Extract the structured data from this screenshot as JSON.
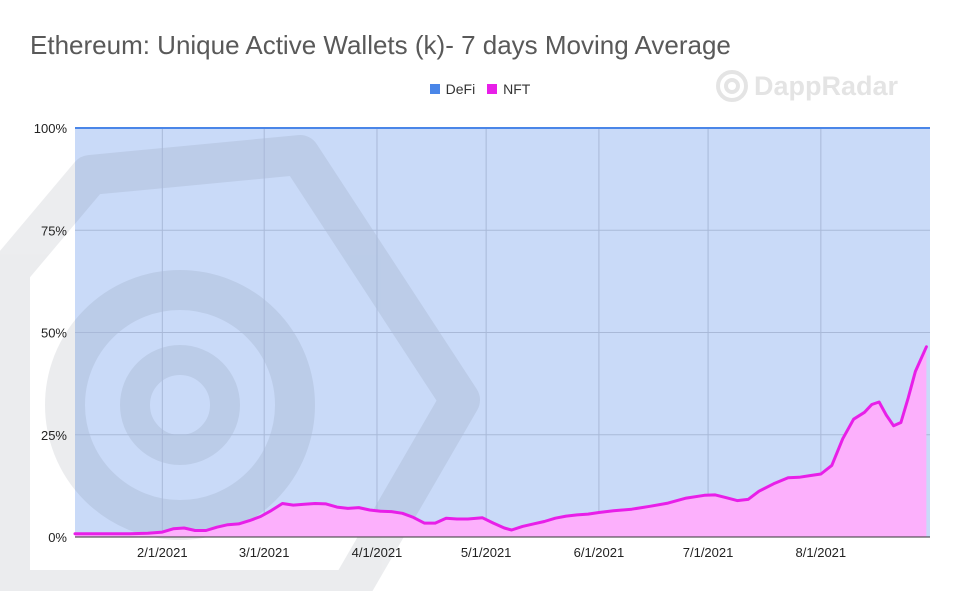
{
  "title": "Ethereum: Unique Active Wallets (k)- 7 days Moving Average",
  "brand": {
    "name": "DappRadar",
    "icon": "dappradar-logo-icon"
  },
  "colors": {
    "defi": "#4a86e8",
    "defi_fill": "#c9daf8",
    "nft": "#e81fe8",
    "nft_fill": "#fcb0fc",
    "grid": "#a9b9d8"
  },
  "chart_data": {
    "type": "area",
    "stacked": "100%",
    "legend": [
      "DeFi",
      "NFT"
    ],
    "legend_position": "top",
    "y_ticks": [
      "100%",
      "75%",
      "50%",
      "25%",
      "0%"
    ],
    "x_ticks": [
      "2/1/2021",
      "3/1/2021",
      "4/1/2021",
      "5/1/2021",
      "6/1/2021",
      "7/1/2021",
      "8/1/2021"
    ],
    "ylim": [
      0,
      100
    ],
    "xlim": [
      "2021-01-08",
      "2021-08-31"
    ],
    "grid": true,
    "series": [
      {
        "name": "NFT",
        "x": [
          "2021-01-08",
          "2021-01-13",
          "2021-01-18",
          "2021-01-23",
          "2021-01-28",
          "2021-02-01",
          "2021-02-04",
          "2021-02-07",
          "2021-02-10",
          "2021-02-13",
          "2021-02-16",
          "2021-02-19",
          "2021-02-22",
          "2021-02-25",
          "2021-02-28",
          "2021-03-03",
          "2021-03-06",
          "2021-03-09",
          "2021-03-12",
          "2021-03-15",
          "2021-03-18",
          "2021-03-21",
          "2021-03-24",
          "2021-03-27",
          "2021-03-30",
          "2021-04-02",
          "2021-04-05",
          "2021-04-08",
          "2021-04-11",
          "2021-04-14",
          "2021-04-17",
          "2021-04-20",
          "2021-04-23",
          "2021-04-26",
          "2021-04-30",
          "2021-05-03",
          "2021-05-06",
          "2021-05-08",
          "2021-05-11",
          "2021-05-14",
          "2021-05-17",
          "2021-05-20",
          "2021-05-23",
          "2021-05-26",
          "2021-05-29",
          "2021-06-01",
          "2021-06-05",
          "2021-06-10",
          "2021-06-15",
          "2021-06-20",
          "2021-06-25",
          "2021-06-30",
          "2021-07-03",
          "2021-07-06",
          "2021-07-09",
          "2021-07-12",
          "2021-07-15",
          "2021-07-19",
          "2021-07-23",
          "2021-07-26",
          "2021-07-29",
          "2021-08-01",
          "2021-08-04",
          "2021-08-07",
          "2021-08-10",
          "2021-08-13",
          "2021-08-15",
          "2021-08-17",
          "2021-08-19",
          "2021-08-21",
          "2021-08-23",
          "2021-08-25",
          "2021-08-27",
          "2021-08-30"
        ],
        "values": [
          0.8,
          0.8,
          0.8,
          0.8,
          0.9,
          1.2,
          2.0,
          2.2,
          1.6,
          1.6,
          2.4,
          3.0,
          3.2,
          4.0,
          5.0,
          6.5,
          8.2,
          7.8,
          8.0,
          8.2,
          8.1,
          7.3,
          7.0,
          7.2,
          6.6,
          6.3,
          6.2,
          5.8,
          4.8,
          3.4,
          3.4,
          4.6,
          4.4,
          4.4,
          4.7,
          3.4,
          2.2,
          1.7,
          2.6,
          3.2,
          3.8,
          4.6,
          5.1,
          5.4,
          5.6,
          6.0,
          6.4,
          6.8,
          7.5,
          8.3,
          9.5,
          10.2,
          10.3,
          9.6,
          8.9,
          9.2,
          11.2,
          13.0,
          14.5,
          14.6,
          15.0,
          15.4,
          17.5,
          24.0,
          28.8,
          30.5,
          32.4,
          33.0,
          29.8,
          27.2,
          28.0,
          34.0,
          40.5,
          46.5
        ]
      },
      {
        "name": "DeFi",
        "note": "remainder to 100%"
      }
    ]
  }
}
